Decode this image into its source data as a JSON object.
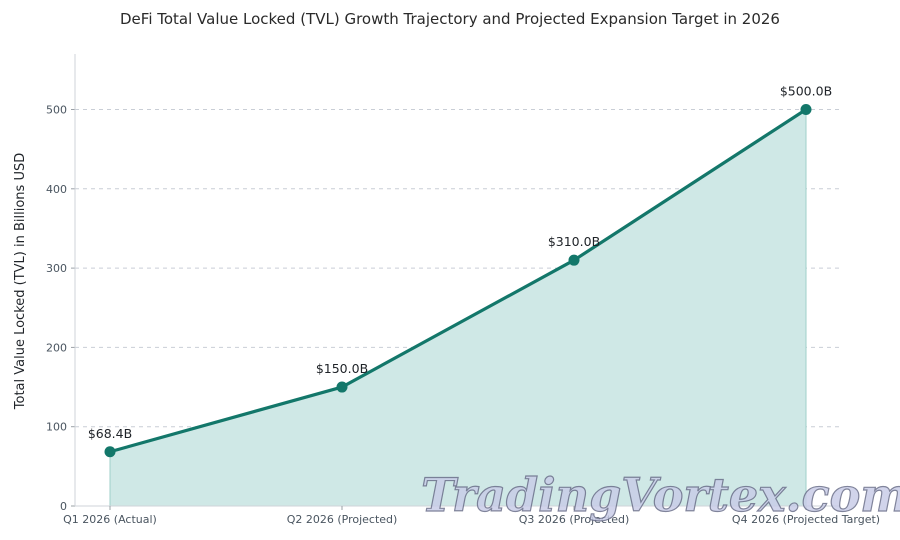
{
  "chart_data": {
    "type": "area",
    "title": "DeFi Total Value Locked (TVL) Growth Trajectory and Projected Expansion Target in 2026",
    "xlabel": "",
    "ylabel": "Total Value Locked (TVL) in Billions USD",
    "categories": [
      "Q1 2026 (Actual)",
      "Q2 2026 (Projected)",
      "Q3 2026 (Projected)",
      "Q4 2026 (Projected Target)"
    ],
    "series": [
      {
        "values": [
          68.4,
          150.0,
          310.0,
          500.0
        ],
        "data_labels": [
          "$68.4B",
          "$150.0B",
          "$310.0B",
          "$500.0B"
        ]
      }
    ],
    "ylim": [
      0,
      570
    ],
    "yticks": [
      0,
      100,
      200,
      300,
      400,
      500
    ],
    "grid": true,
    "line_color": "#13776a",
    "fill_color": "#cfe8e6"
  },
  "watermark": "TradingVortex.com"
}
